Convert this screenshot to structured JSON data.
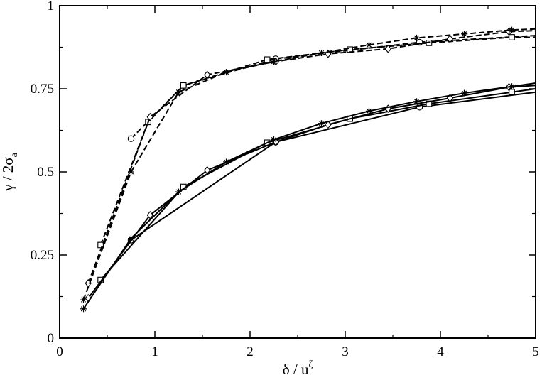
{
  "chart_data": {
    "type": "line",
    "xlim": [
      0,
      5
    ],
    "ylim": [
      0,
      1
    ],
    "x_ticks": [
      0,
      1,
      2,
      3,
      4,
      5
    ],
    "y_ticks": [
      0,
      0.25,
      0.5,
      0.75,
      1
    ],
    "x_tick_labels": [
      "0",
      "1",
      "2",
      "3",
      "4",
      "5"
    ],
    "y_tick_labels": [
      "0",
      "0.25",
      "0.5",
      "0.75",
      "1"
    ],
    "xlabel": {
      "main": "δ / u",
      "sup": "ζ"
    },
    "ylabel": {
      "main": "γ / 2σ",
      "sub": "a"
    },
    "grid": false,
    "legend": "none",
    "series": [
      {
        "style": "dashed",
        "marker": "circle",
        "x": [
          0.75,
          1.3,
          2.27,
          3.78,
          5.0
        ],
        "y": [
          0.6,
          0.76,
          0.84,
          0.89,
          0.91
        ]
      },
      {
        "style": "dashed",
        "marker": "square",
        "x": [
          0.43,
          0.93,
          1.3,
          2.18,
          3.05,
          3.88,
          4.75,
          5.0
        ],
        "y": [
          0.28,
          0.65,
          0.76,
          0.838,
          0.868,
          0.888,
          0.905,
          0.905
        ]
      },
      {
        "style": "dashed",
        "marker": "diamond",
        "x": [
          0.3,
          0.95,
          1.55,
          2.27,
          2.82,
          3.45,
          4.1,
          4.72,
          5.0
        ],
        "y": [
          0.165,
          0.665,
          0.792,
          0.832,
          0.855,
          0.87,
          0.9,
          0.922,
          0.925
        ]
      },
      {
        "style": "dashed",
        "marker": "asterisk",
        "x": [
          0.25,
          0.75,
          1.25,
          1.75,
          2.25,
          2.75,
          3.25,
          3.75,
          4.25,
          4.75,
          5.0
        ],
        "y": [
          0.115,
          0.5,
          0.74,
          0.8,
          0.832,
          0.858,
          0.882,
          0.903,
          0.915,
          0.927,
          0.93
        ]
      },
      {
        "style": "solid",
        "marker": "circle",
        "x": [
          0.75,
          2.27,
          3.78,
          5.0
        ],
        "y": [
          0.295,
          0.59,
          0.695,
          0.74
        ]
      },
      {
        "style": "solid",
        "marker": "square",
        "x": [
          0.43,
          1.3,
          2.18,
          3.05,
          3.88,
          4.75,
          5.0
        ],
        "y": [
          0.175,
          0.455,
          0.588,
          0.66,
          0.705,
          0.74,
          0.75
        ]
      },
      {
        "style": "solid",
        "marker": "diamond",
        "x": [
          0.3,
          0.95,
          1.55,
          2.27,
          2.82,
          3.45,
          4.1,
          4.72,
          5.0
        ],
        "y": [
          0.12,
          0.37,
          0.505,
          0.59,
          0.642,
          0.69,
          0.722,
          0.755,
          0.76
        ]
      },
      {
        "style": "solid",
        "marker": "asterisk",
        "x": [
          0.25,
          0.75,
          1.25,
          1.75,
          2.25,
          2.75,
          3.25,
          3.75,
          4.25,
          4.75,
          5.0
        ],
        "y": [
          0.088,
          0.3,
          0.44,
          0.53,
          0.597,
          0.646,
          0.683,
          0.712,
          0.737,
          0.757,
          0.767
        ]
      }
    ]
  }
}
